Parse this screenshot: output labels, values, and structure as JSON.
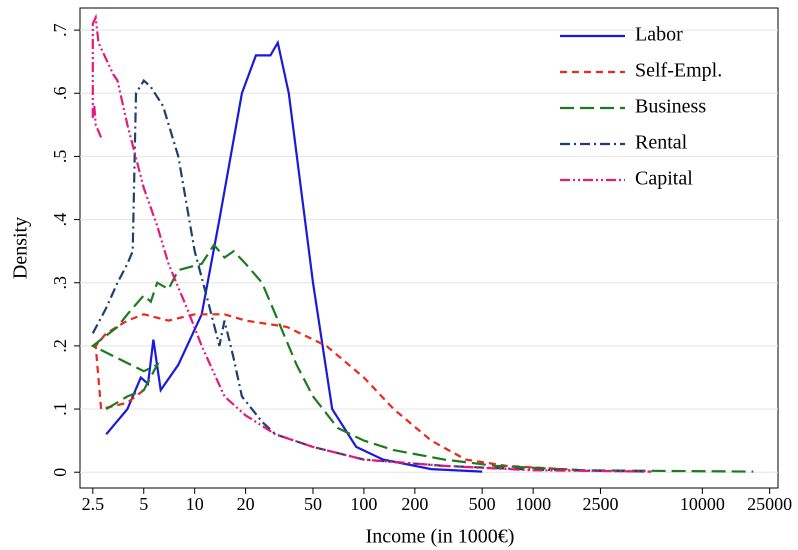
{
  "chart_data": {
    "type": "line",
    "xlabel": "Income (in 1000€)",
    "ylabel": "Density",
    "xscale": "log",
    "xlim": [
      2.1,
      28000
    ],
    "ylim": [
      -0.025,
      0.735
    ],
    "xticks": [
      2.5,
      5,
      10,
      20,
      50,
      100,
      200,
      500,
      1000,
      2500,
      10000,
      25000
    ],
    "yticks": [
      0,
      {
        "value": 0.1,
        "label": ".1"
      },
      {
        "value": 0.2,
        "label": ".2"
      },
      {
        "value": 0.3,
        "label": ".3"
      },
      {
        "value": 0.4,
        "label": ".4"
      },
      {
        "value": 0.5,
        "label": ".5"
      },
      {
        "value": 0.6,
        "label": ".6"
      },
      {
        "value": 0.7,
        "label": ".7"
      }
    ],
    "grid": true,
    "legend": "upper right",
    "series": [
      {
        "name": "Labor",
        "color": "#1a1adb",
        "dash": "none",
        "x": [
          3,
          4,
          4.8,
          5.3,
          5.7,
          6.3,
          8,
          11,
          14,
          19,
          23,
          28,
          31,
          36,
          50,
          65,
          90,
          130,
          250,
          500
        ],
        "values": [
          0.06,
          0.1,
          0.15,
          0.14,
          0.21,
          0.13,
          0.17,
          0.25,
          0.4,
          0.6,
          0.66,
          0.66,
          0.68,
          0.6,
          0.3,
          0.1,
          0.04,
          0.02,
          0.005,
          0.001
        ]
      },
      {
        "name": "Self-Empl.",
        "color": "#e8291c",
        "dash": "7,5",
        "x": [
          5,
          4,
          2.8,
          2.6,
          3,
          4,
          5,
          7,
          10,
          15,
          20,
          35,
          60,
          100,
          150,
          250,
          400,
          700,
          2000
        ],
        "values": [
          0.13,
          0.11,
          0.1,
          0.2,
          0.22,
          0.24,
          0.25,
          0.24,
          0.25,
          0.25,
          0.24,
          0.23,
          0.2,
          0.15,
          0.1,
          0.05,
          0.02,
          0.01,
          0.003
        ]
      },
      {
        "name": "Business",
        "color": "#1e7a1e",
        "dash": "14,6",
        "x": [
          3,
          4,
          5,
          6,
          5,
          2.5,
          3.5,
          4,
          5,
          5.5,
          6,
          7,
          8,
          11,
          13,
          15,
          17,
          20,
          25,
          30,
          40,
          50,
          70,
          100,
          150,
          300,
          600,
          2000,
          20000
        ],
        "values": [
          0.1,
          0.12,
          0.13,
          0.17,
          0.16,
          0.2,
          0.23,
          0.25,
          0.28,
          0.27,
          0.3,
          0.29,
          0.32,
          0.33,
          0.36,
          0.34,
          0.35,
          0.33,
          0.3,
          0.25,
          0.17,
          0.12,
          0.07,
          0.05,
          0.035,
          0.02,
          0.01,
          0.003,
          0.001
        ]
      },
      {
        "name": "Rental",
        "color": "#1f3f6e",
        "dash": "10,4,2,4",
        "x": [
          2.5,
          3,
          3.5,
          4,
          4.3,
          4.5,
          5,
          5.5,
          6.5,
          8,
          10,
          12,
          14,
          15,
          17,
          19,
          25,
          30,
          50,
          100,
          300,
          1000,
          5000
        ],
        "values": [
          0.22,
          0.26,
          0.3,
          0.33,
          0.35,
          0.6,
          0.62,
          0.61,
          0.58,
          0.5,
          0.35,
          0.27,
          0.2,
          0.24,
          0.18,
          0.12,
          0.08,
          0.06,
          0.04,
          0.02,
          0.01,
          0.004,
          0.001
        ]
      },
      {
        "name": "Capital",
        "color": "#e6187f",
        "dash": "10,3,2,3,2,3",
        "x": [
          2.8,
          2.6,
          2.55,
          2.5,
          2.5,
          2.6,
          2.7,
          3.3,
          3.5,
          4,
          5,
          6,
          7,
          9,
          11,
          15,
          20,
          30,
          50,
          100,
          300,
          1000,
          5000
        ],
        "values": [
          0.53,
          0.55,
          0.58,
          0.56,
          0.71,
          0.72,
          0.68,
          0.63,
          0.62,
          0.55,
          0.45,
          0.39,
          0.33,
          0.26,
          0.2,
          0.12,
          0.09,
          0.06,
          0.04,
          0.02,
          0.01,
          0.003,
          0.001
        ]
      }
    ]
  }
}
